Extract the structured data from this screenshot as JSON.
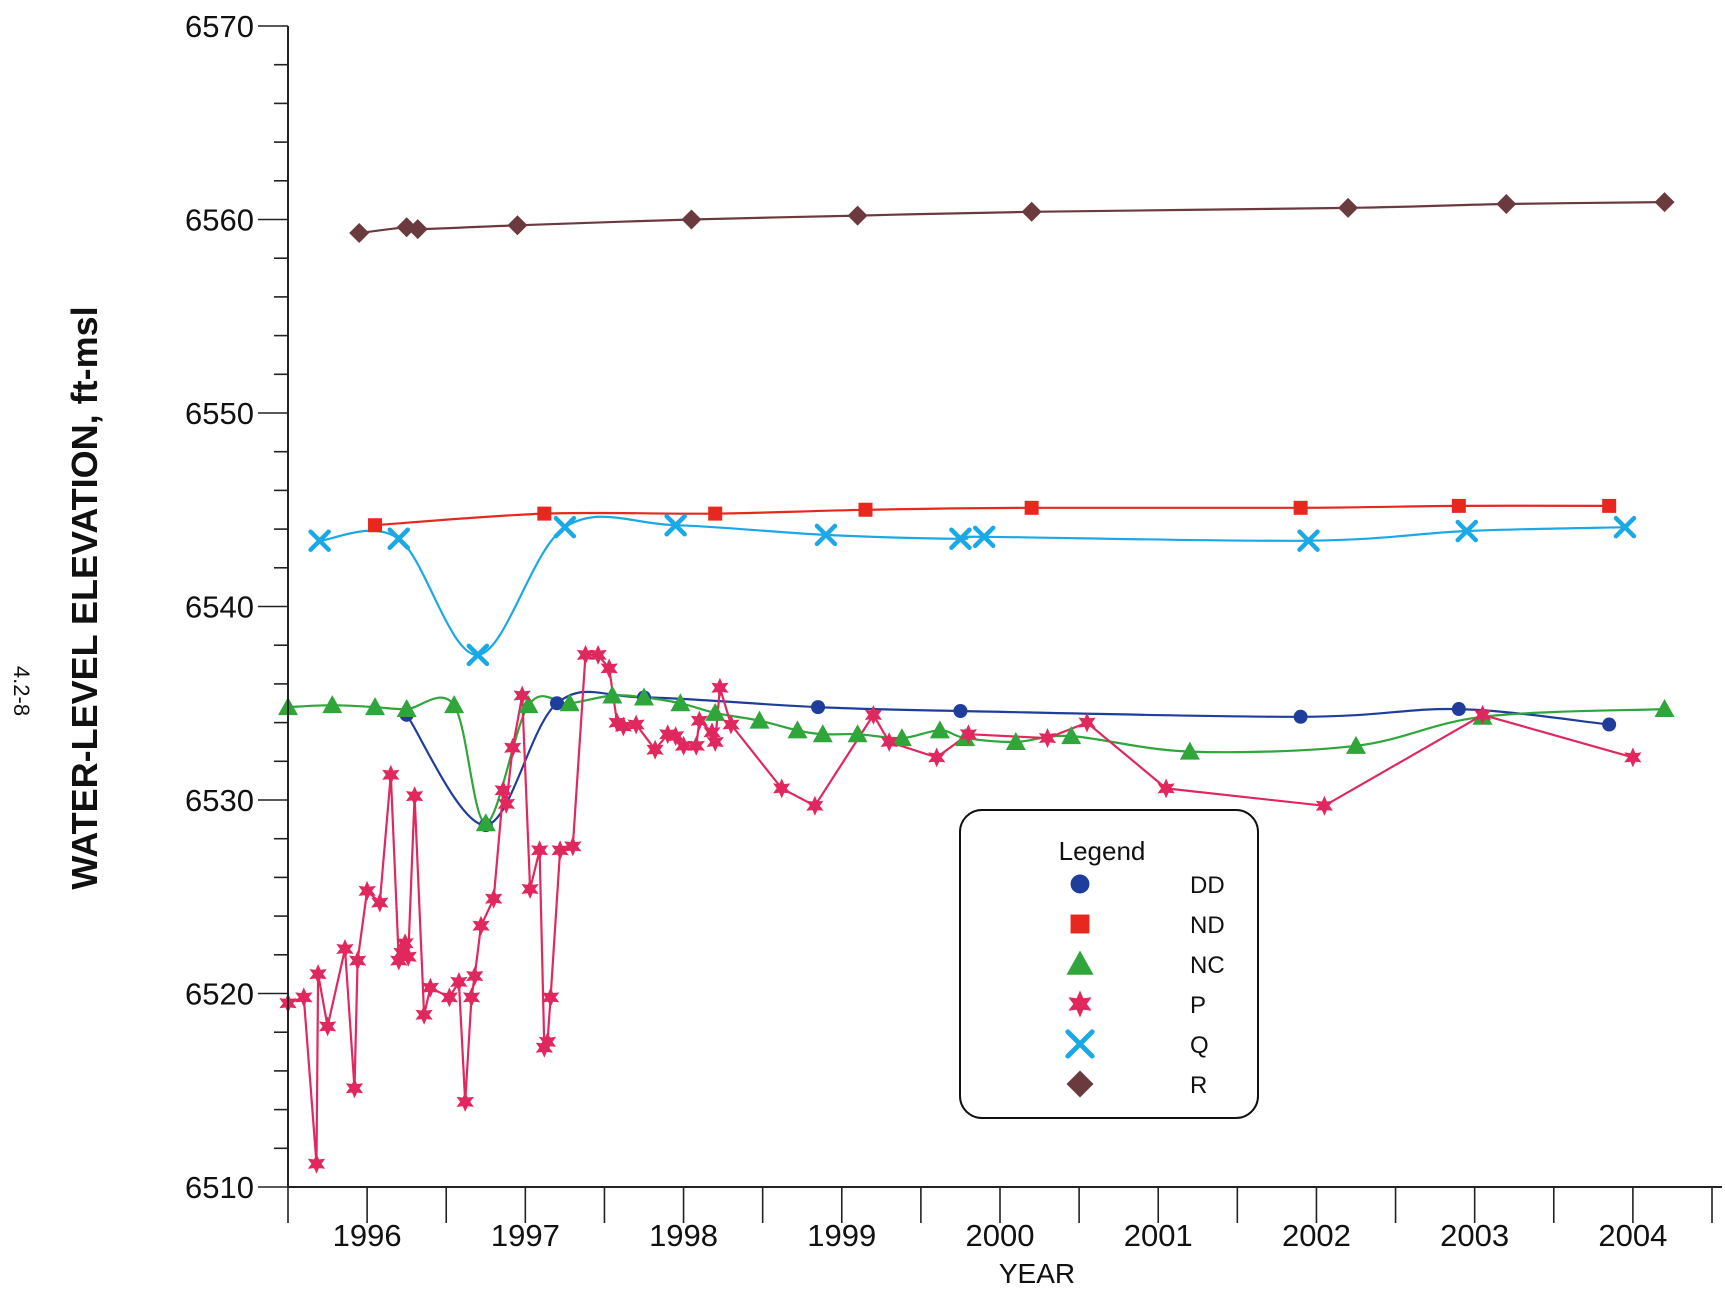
{
  "side_note": "4.2-8",
  "chart_data": {
    "type": "line",
    "title": "",
    "xlabel": "YEAR",
    "ylabel": "WATER-LEVEL ELEVATION, ft-msl",
    "xlim": [
      1995.5,
      2004.5
    ],
    "ylim": [
      6510,
      6570
    ],
    "x_ticks": [
      1996,
      1997,
      1998,
      1999,
      2000,
      2001,
      2002,
      2003,
      2004
    ],
    "x_tick_labels": [
      "1996",
      "1997",
      "1998",
      "1999",
      "2000",
      "2001",
      "2002",
      "2003",
      "2004"
    ],
    "y_ticks": [
      6510,
      6520,
      6530,
      6540,
      6550,
      6560,
      6570
    ],
    "y_tick_labels": [
      "6510",
      "6520",
      "6530",
      "6540",
      "6550",
      "6560",
      "6570"
    ],
    "grid": false,
    "legend": {
      "title": "Legend",
      "placement": "bottom-right"
    },
    "series": [
      {
        "name": "DD",
        "color": "#1f3e9c",
        "marker": "circle",
        "x": [
          1996.25,
          1996.75,
          1997.2,
          1997.75,
          1998.85,
          1999.75,
          2001.9,
          2002.9,
          2003.85
        ],
        "y": [
          6534.4,
          6528.7,
          6535.0,
          6535.3,
          6534.8,
          6534.6,
          6534.3,
          6534.7,
          6533.9
        ]
      },
      {
        "name": "ND",
        "color": "#e8281e",
        "marker": "square",
        "x": [
          1996.05,
          1997.12,
          1998.2,
          1999.15,
          2000.2,
          2001.9,
          2002.9,
          2003.85
        ],
        "y": [
          6544.2,
          6544.8,
          6544.8,
          6545.0,
          6545.1,
          6545.1,
          6545.2,
          6545.2
        ]
      },
      {
        "name": "NC",
        "color": "#2fa53a",
        "marker": "triangle",
        "x": [
          1995.5,
          1995.78,
          1996.05,
          1996.25,
          1996.55,
          1996.75,
          1997.02,
          1997.28,
          1997.55,
          1997.75,
          1997.98,
          1998.2,
          1998.48,
          1998.72,
          1998.88,
          1999.1,
          1999.38,
          1999.62,
          1999.78,
          2000.1,
          2000.45,
          2001.2,
          2002.25,
          2003.05,
          2004.2
        ],
        "y": [
          6534.8,
          6534.9,
          6534.8,
          6534.7,
          6534.9,
          6528.8,
          6534.9,
          6535.0,
          6535.4,
          6535.3,
          6535.0,
          6534.5,
          6534.1,
          6533.6,
          6533.4,
          6533.4,
          6533.2,
          6533.6,
          6533.2,
          6533.0,
          6533.3,
          6532.5,
          6532.8,
          6534.3,
          6534.7
        ]
      },
      {
        "name": "P",
        "color": "#e0285e",
        "marker": "star",
        "x": [
          1995.5,
          1995.6,
          1995.68,
          1995.69,
          1995.75,
          1995.86,
          1995.92,
          1995.94,
          1996.0,
          1996.08,
          1996.15,
          1996.2,
          1996.22,
          1996.24,
          1996.26,
          1996.3,
          1996.36,
          1996.4,
          1996.52,
          1996.58,
          1996.62,
          1996.66,
          1996.68,
          1996.72,
          1996.8,
          1996.86,
          1996.88,
          1996.92,
          1996.98,
          1997.03,
          1997.09,
          1997.12,
          1997.14,
          1997.16,
          1997.22,
          1997.3,
          1997.38,
          1997.46,
          1997.53,
          1997.58,
          1997.62,
          1997.7,
          1997.82,
          1997.9,
          1997.95,
          1998.0,
          1998.08,
          1998.1,
          1998.18,
          1998.2,
          1998.23,
          1998.3,
          1998.62,
          1998.83,
          1999.2,
          1999.3,
          1999.6,
          1999.8,
          2000.3,
          2000.55,
          2001.05,
          2002.05,
          2003.05,
          2004.0
        ],
        "y": [
          6519.5,
          6519.8,
          6511.2,
          6521.0,
          6518.3,
          6522.3,
          6515.1,
          6521.7,
          6525.3,
          6524.7,
          6531.3,
          6521.7,
          6522.1,
          6522.6,
          6521.9,
          6530.2,
          6518.9,
          6520.3,
          6519.8,
          6520.6,
          6514.4,
          6519.8,
          6520.9,
          6523.5,
          6524.9,
          6530.5,
          6529.8,
          6532.7,
          6535.4,
          6525.4,
          6527.4,
          6517.2,
          6517.5,
          6519.8,
          6527.4,
          6527.6,
          6537.5,
          6537.5,
          6536.8,
          6534.0,
          6533.8,
          6533.9,
          6532.6,
          6533.4,
          6533.3,
          6532.8,
          6532.8,
          6534.1,
          6533.5,
          6533.0,
          6535.8,
          6533.9,
          6530.6,
          6529.7,
          6534.4,
          6533.0,
          6532.2,
          6533.4,
          6533.2,
          6534.0,
          6530.6,
          6529.7,
          6534.4,
          6532.2
        ]
      },
      {
        "name": "Q",
        "color": "#1aa8e6",
        "marker": "x",
        "x": [
          1995.7,
          1996.2,
          1996.7,
          1997.25,
          1997.95,
          1998.9,
          1999.75,
          1999.9,
          2001.95,
          2002.95,
          2003.95
        ],
        "y": [
          6543.4,
          6543.5,
          6537.5,
          6544.1,
          6544.2,
          6543.7,
          6543.5,
          6543.6,
          6543.4,
          6543.9,
          6544.1
        ]
      },
      {
        "name": "R",
        "color": "#6b3a3f",
        "marker": "diamond",
        "x": [
          1995.95,
          1996.25,
          1996.32,
          1996.95,
          1998.05,
          1999.1,
          2000.2,
          2002.2,
          2003.2,
          2004.2
        ],
        "y": [
          6559.3,
          6559.6,
          6559.5,
          6559.7,
          6560.0,
          6560.2,
          6560.4,
          6560.6,
          6560.8,
          6560.9
        ]
      }
    ]
  }
}
